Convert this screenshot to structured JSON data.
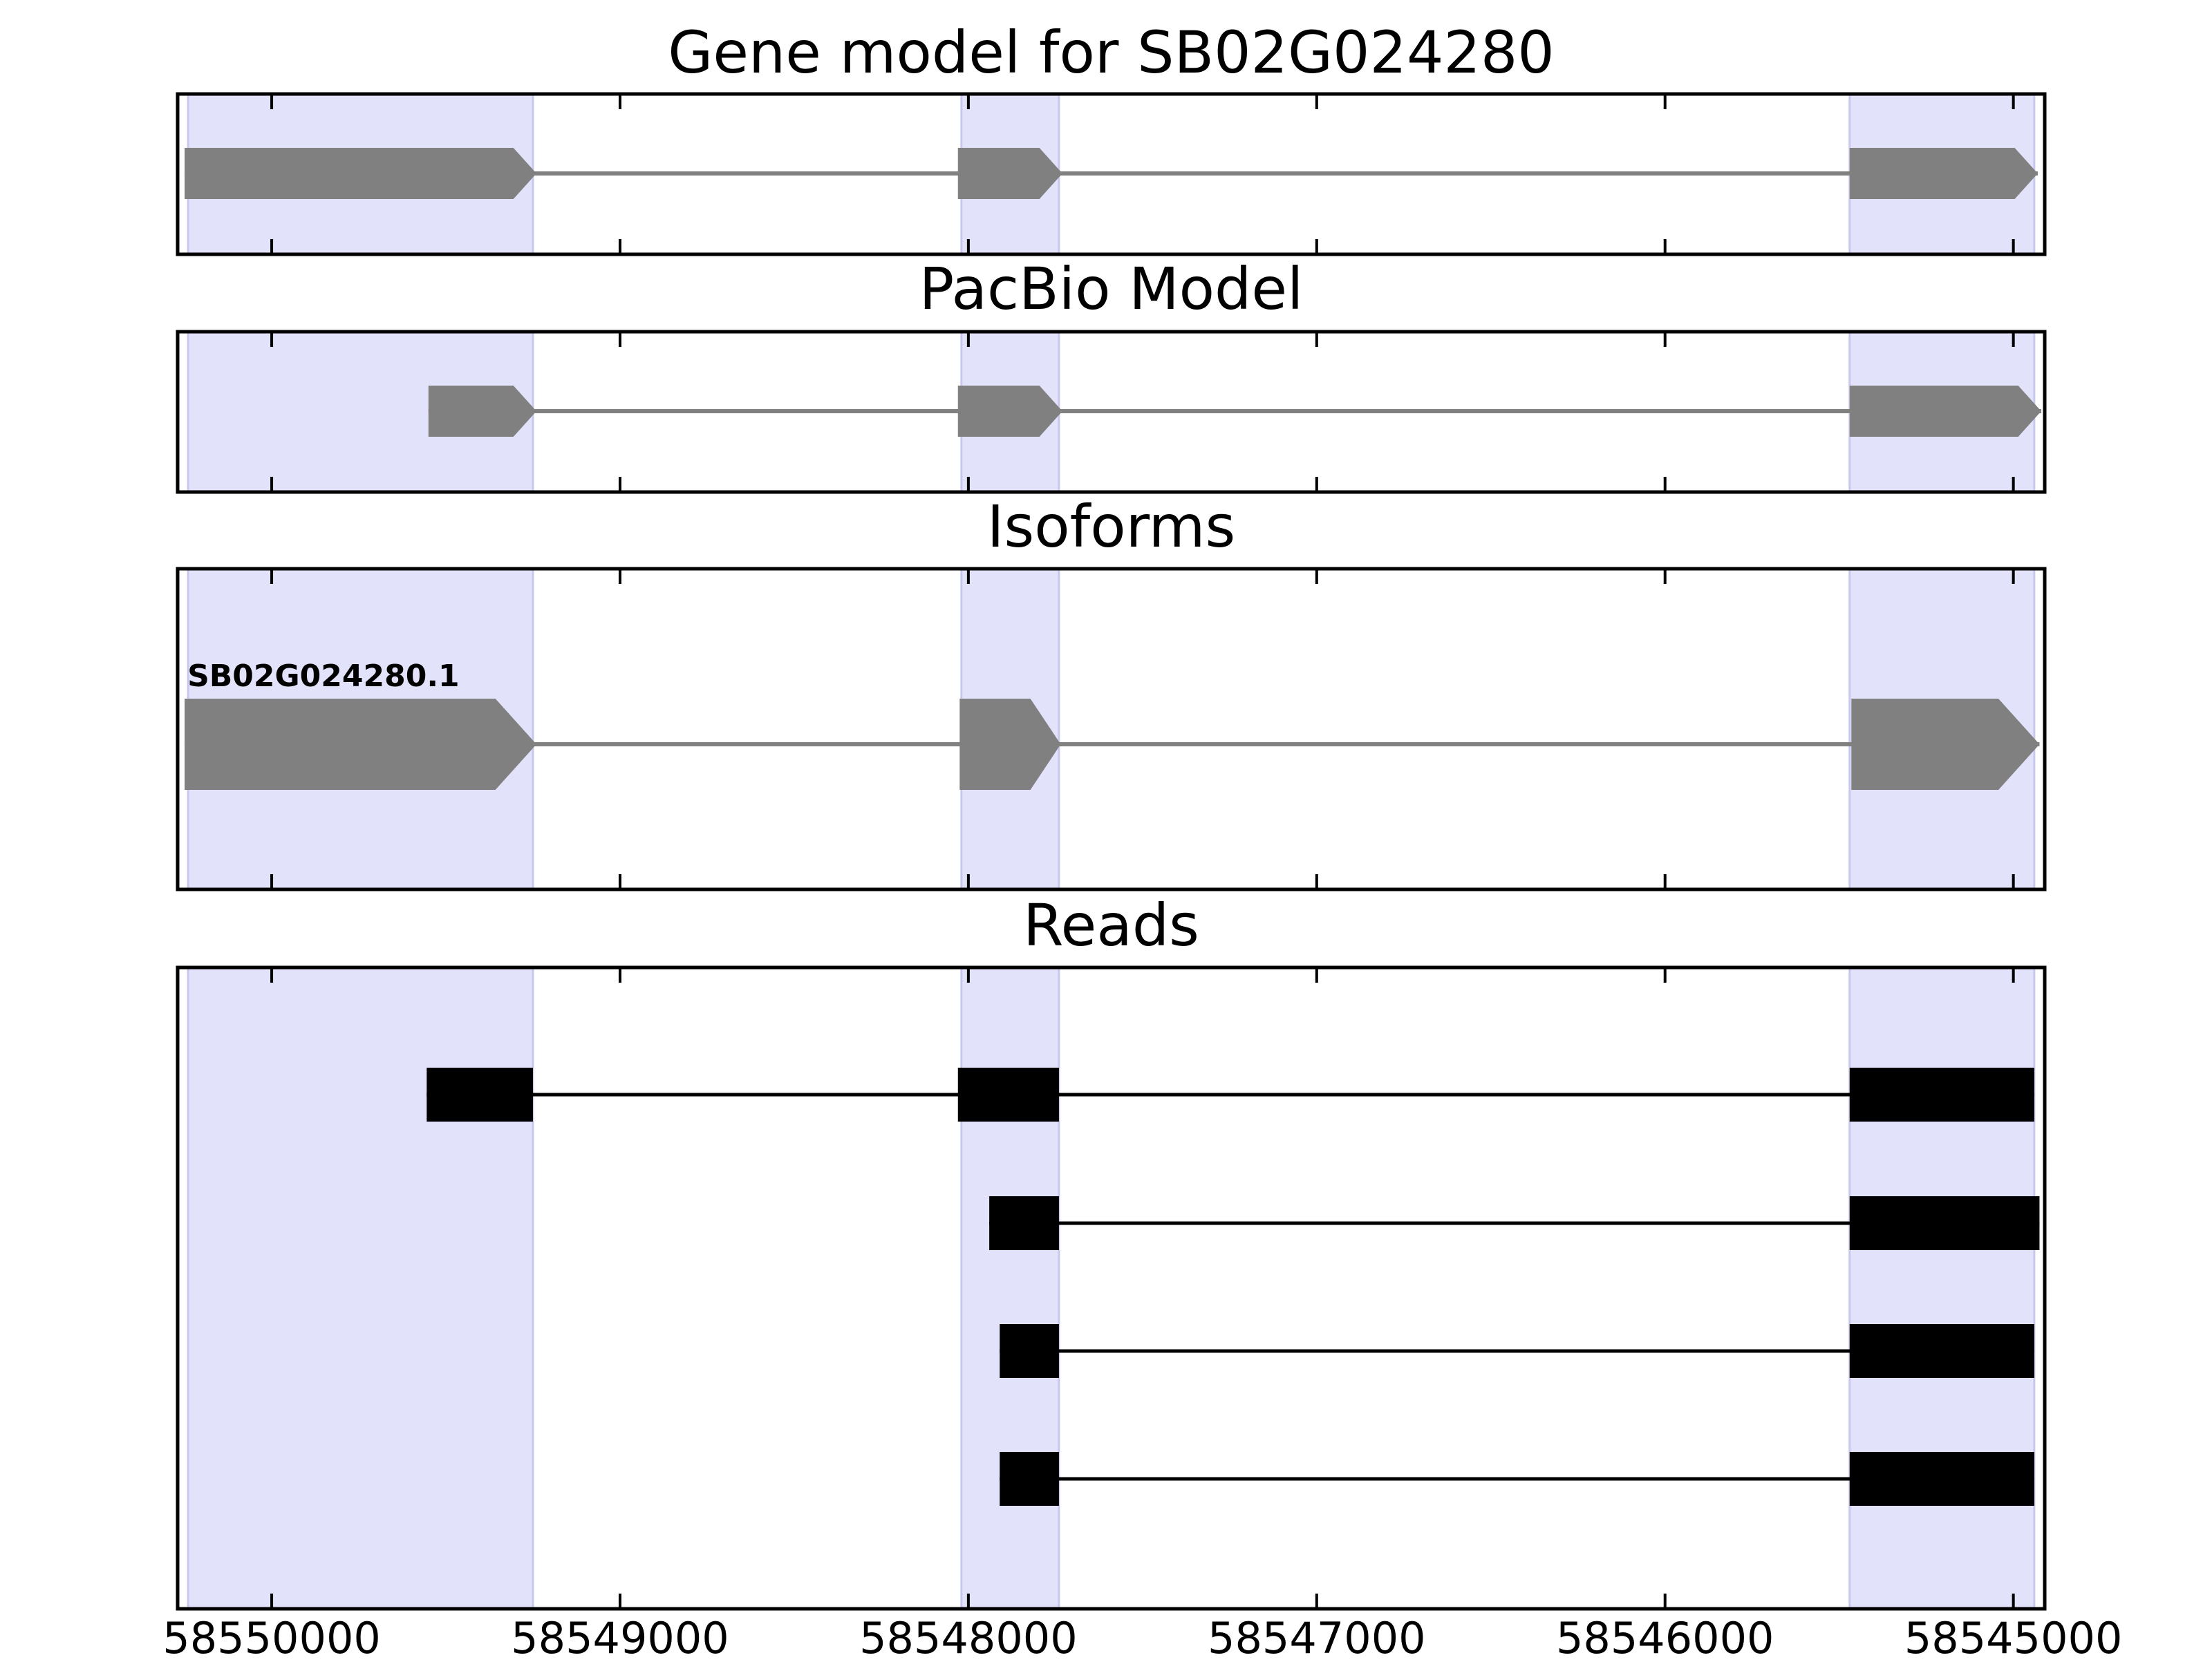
{
  "chart_data": {
    "type": "gene_model_tracks",
    "x_axis": {
      "reversed": true,
      "xlim": [
        58550270,
        58544910
      ],
      "ticks": [
        58550000,
        58549000,
        58548000,
        58547000,
        58546000,
        58545000
      ],
      "tick_labels": [
        "58550000",
        "58549000",
        "58548000",
        "58547000",
        "58546000",
        "58545000"
      ]
    },
    "highlight_regions": [
      {
        "start": 58550240,
        "end": 58549250
      },
      {
        "start": 58548020,
        "end": 58547740
      },
      {
        "start": 58545470,
        "end": 58544940
      }
    ],
    "colors": {
      "highlight": "#e2e2fb",
      "highlight_edge": "#c8c8ee",
      "model_feature": "#808080",
      "read_feature": "#000000",
      "axes": "#000000"
    },
    "panels": [
      {
        "id": "gene-model",
        "title": "Gene model for SB02G024280",
        "tracks": [
          {
            "label": "",
            "style": "arrow",
            "color": "#808080",
            "exons": [
              {
                "start": 58550250,
                "end": 58549240
              },
              {
                "start": 58548030,
                "end": 58547730
              },
              {
                "start": 58545470,
                "end": 58544930
              }
            ]
          }
        ]
      },
      {
        "id": "pacbio-model",
        "title": "PacBio Model",
        "tracks": [
          {
            "label": "",
            "style": "arrow",
            "color": "#808080",
            "exons": [
              {
                "start": 58549550,
                "end": 58549240
              },
              {
                "start": 58548030,
                "end": 58547730
              },
              {
                "start": 58545470,
                "end": 58544920
              }
            ]
          }
        ]
      },
      {
        "id": "isoforms",
        "title": "Isoforms",
        "tracks": [
          {
            "label": "SB02G024280.1",
            "style": "arrow",
            "color": "#808080",
            "exons": [
              {
                "start": 58550250,
                "end": 58549240
              },
              {
                "start": 58548025,
                "end": 58547735
              },
              {
                "start": 58545465,
                "end": 58544925
              }
            ]
          }
        ]
      },
      {
        "id": "reads",
        "title": "Reads",
        "tracks": [
          {
            "label": "",
            "style": "box",
            "color": "#000000",
            "exons": [
              {
                "start": 58549555,
                "end": 58549250
              },
              {
                "start": 58548030,
                "end": 58547740
              },
              {
                "start": 58545470,
                "end": 58544940
              }
            ]
          },
          {
            "label": "",
            "style": "box",
            "color": "#000000",
            "exons": [
              {
                "start": 58547940,
                "end": 58547740
              },
              {
                "start": 58545470,
                "end": 58544925
              }
            ]
          },
          {
            "label": "",
            "style": "box",
            "color": "#000000",
            "exons": [
              {
                "start": 58547910,
                "end": 58547740
              },
              {
                "start": 58545470,
                "end": 58544940
              }
            ]
          },
          {
            "label": "",
            "style": "box",
            "color": "#000000",
            "exons": [
              {
                "start": 58547910,
                "end": 58547740
              },
              {
                "start": 58545470,
                "end": 58544940
              }
            ]
          }
        ]
      }
    ]
  }
}
